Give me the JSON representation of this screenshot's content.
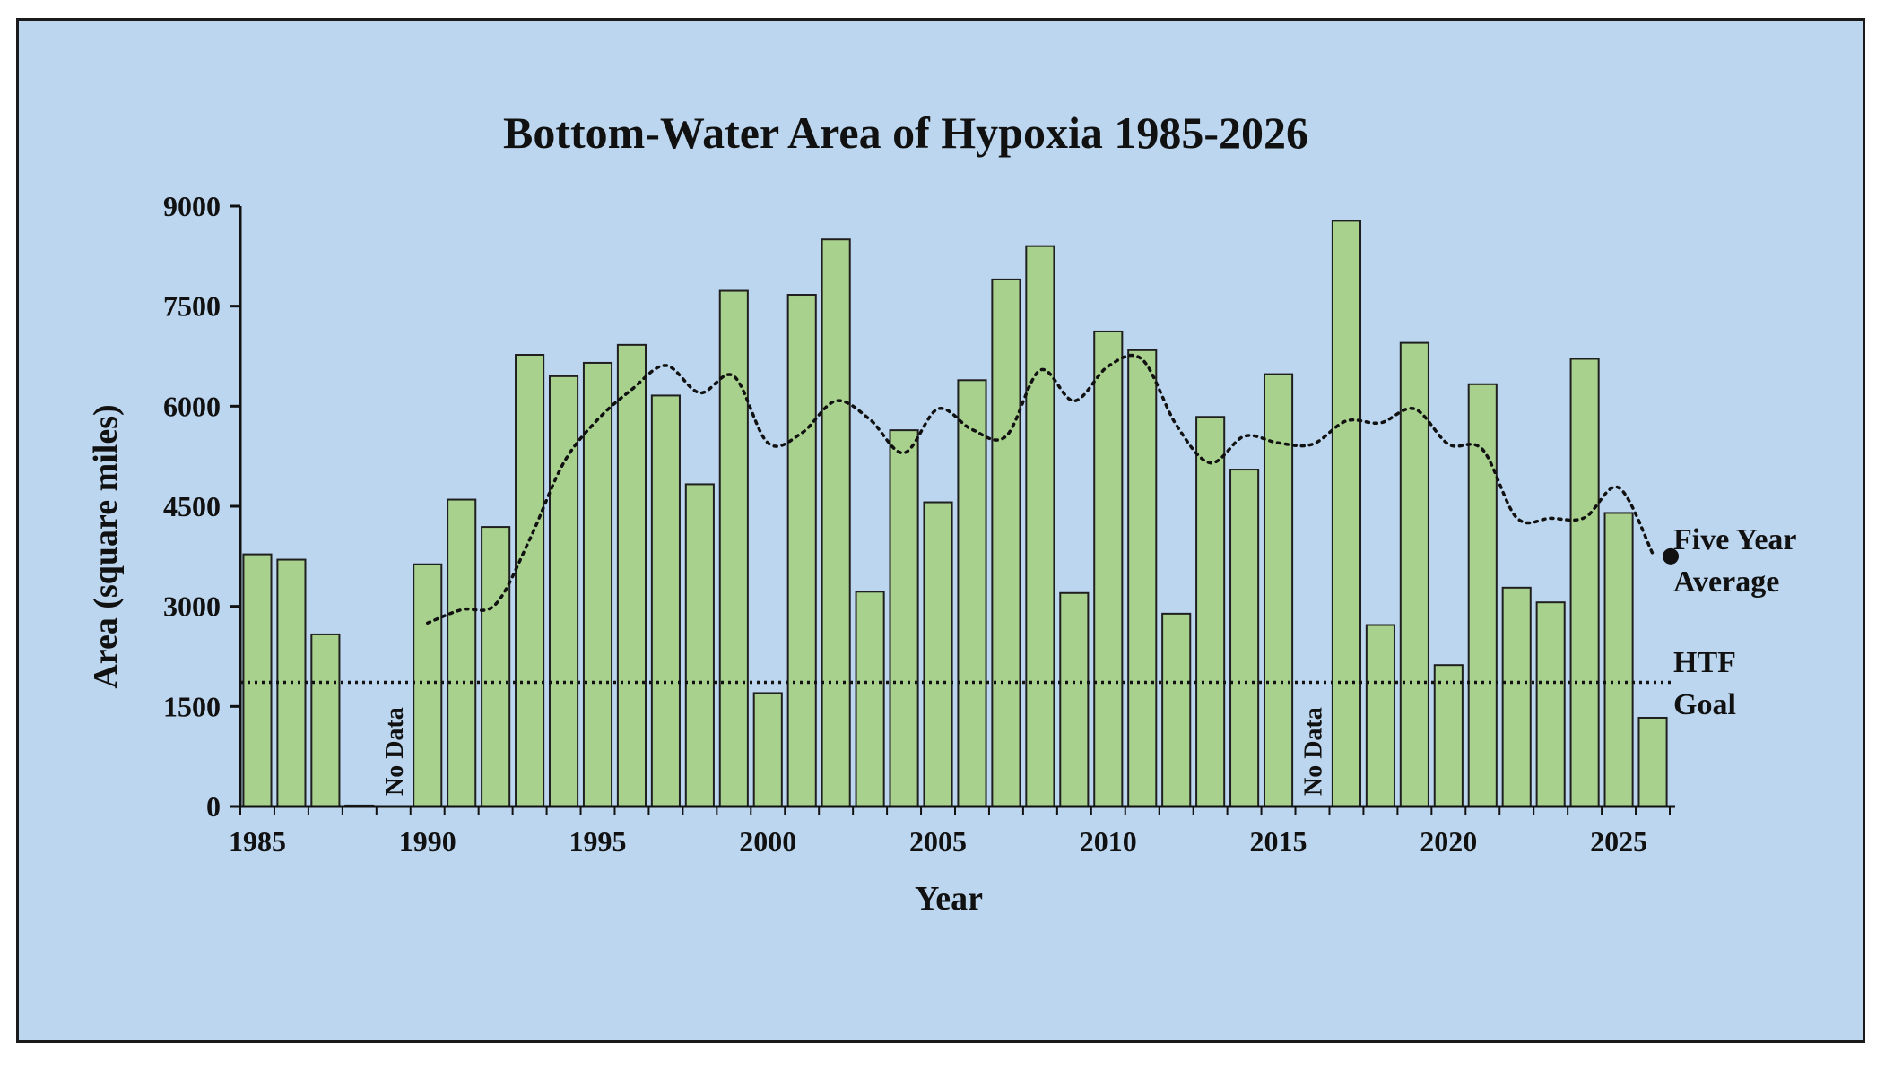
{
  "chart_data": {
    "type": "bar",
    "title": "Bottom-Water Area of Hypoxia 1985-2026",
    "xlabel": "Year",
    "ylabel": "Area (square miles)",
    "ylim": [
      0,
      9000
    ],
    "yticks": [
      "0",
      "1500",
      "3000",
      "4500",
      "6000",
      "7500",
      "9000"
    ],
    "xticks": [
      "1985",
      "1990",
      "1995",
      "2000",
      "2005",
      "2010",
      "2015",
      "2020",
      "2025"
    ],
    "x": [
      1985,
      1986,
      1987,
      1988,
      1989,
      1990,
      1991,
      1992,
      1993,
      1994,
      1995,
      1996,
      1997,
      1998,
      1999,
      2000,
      2001,
      2002,
      2003,
      2004,
      2005,
      2006,
      2007,
      2008,
      2009,
      2010,
      2011,
      2012,
      2013,
      2014,
      2015,
      2016,
      2017,
      2018,
      2019,
      2020,
      2021,
      2022,
      2023,
      2024,
      2025,
      2026
    ],
    "values": [
      3780,
      3700,
      2580,
      15,
      null,
      3630,
      4600,
      4190,
      6770,
      6450,
      6650,
      6920,
      6160,
      4830,
      7730,
      1700,
      7670,
      8500,
      3220,
      5640,
      4560,
      6390,
      7900,
      8400,
      3200,
      7120,
      6840,
      2890,
      5840,
      5050,
      6480,
      null,
      8780,
      2720,
      6950,
      2120,
      6330,
      3280,
      3060,
      6710,
      4400,
      1330
    ],
    "five_year_average": {
      "x": [
        1990,
        1991,
        1992,
        1993,
        1994,
        1995,
        1996,
        1997,
        1998,
        1999,
        2000,
        2001,
        2002,
        2003,
        2004,
        2005,
        2006,
        2007,
        2008,
        2009,
        2010,
        2011,
        2012,
        2013,
        2014,
        2015,
        2016,
        2017,
        2018,
        2019,
        2020,
        2021,
        2022,
        2023,
        2024,
        2025,
        2026
      ],
      "values": [
        2750,
        2950,
        3030,
        4000,
        5150,
        5800,
        6250,
        6610,
        6200,
        6450,
        5450,
        5600,
        6080,
        5800,
        5300,
        5960,
        5650,
        5550,
        6540,
        6080,
        6600,
        6700,
        5720,
        5150,
        5550,
        5450,
        5430,
        5780,
        5750,
        5960,
        5430,
        5350,
        4330,
        4320,
        4330,
        4780,
        3790
      ]
    },
    "htf_goal": 1860,
    "no_data_label": "No Data",
    "no_data_years": [
      1989,
      2016
    ],
    "legend": {
      "five_year_average": [
        "Five Year",
        "Average"
      ],
      "htf_goal": [
        "HTF",
        "Goal"
      ]
    },
    "grid": false,
    "colors": {
      "background": "#bcd6ef",
      "bar_fill": "#a9d18e",
      "bar_stroke": "#1f1f1f",
      "line": "#111111"
    }
  }
}
